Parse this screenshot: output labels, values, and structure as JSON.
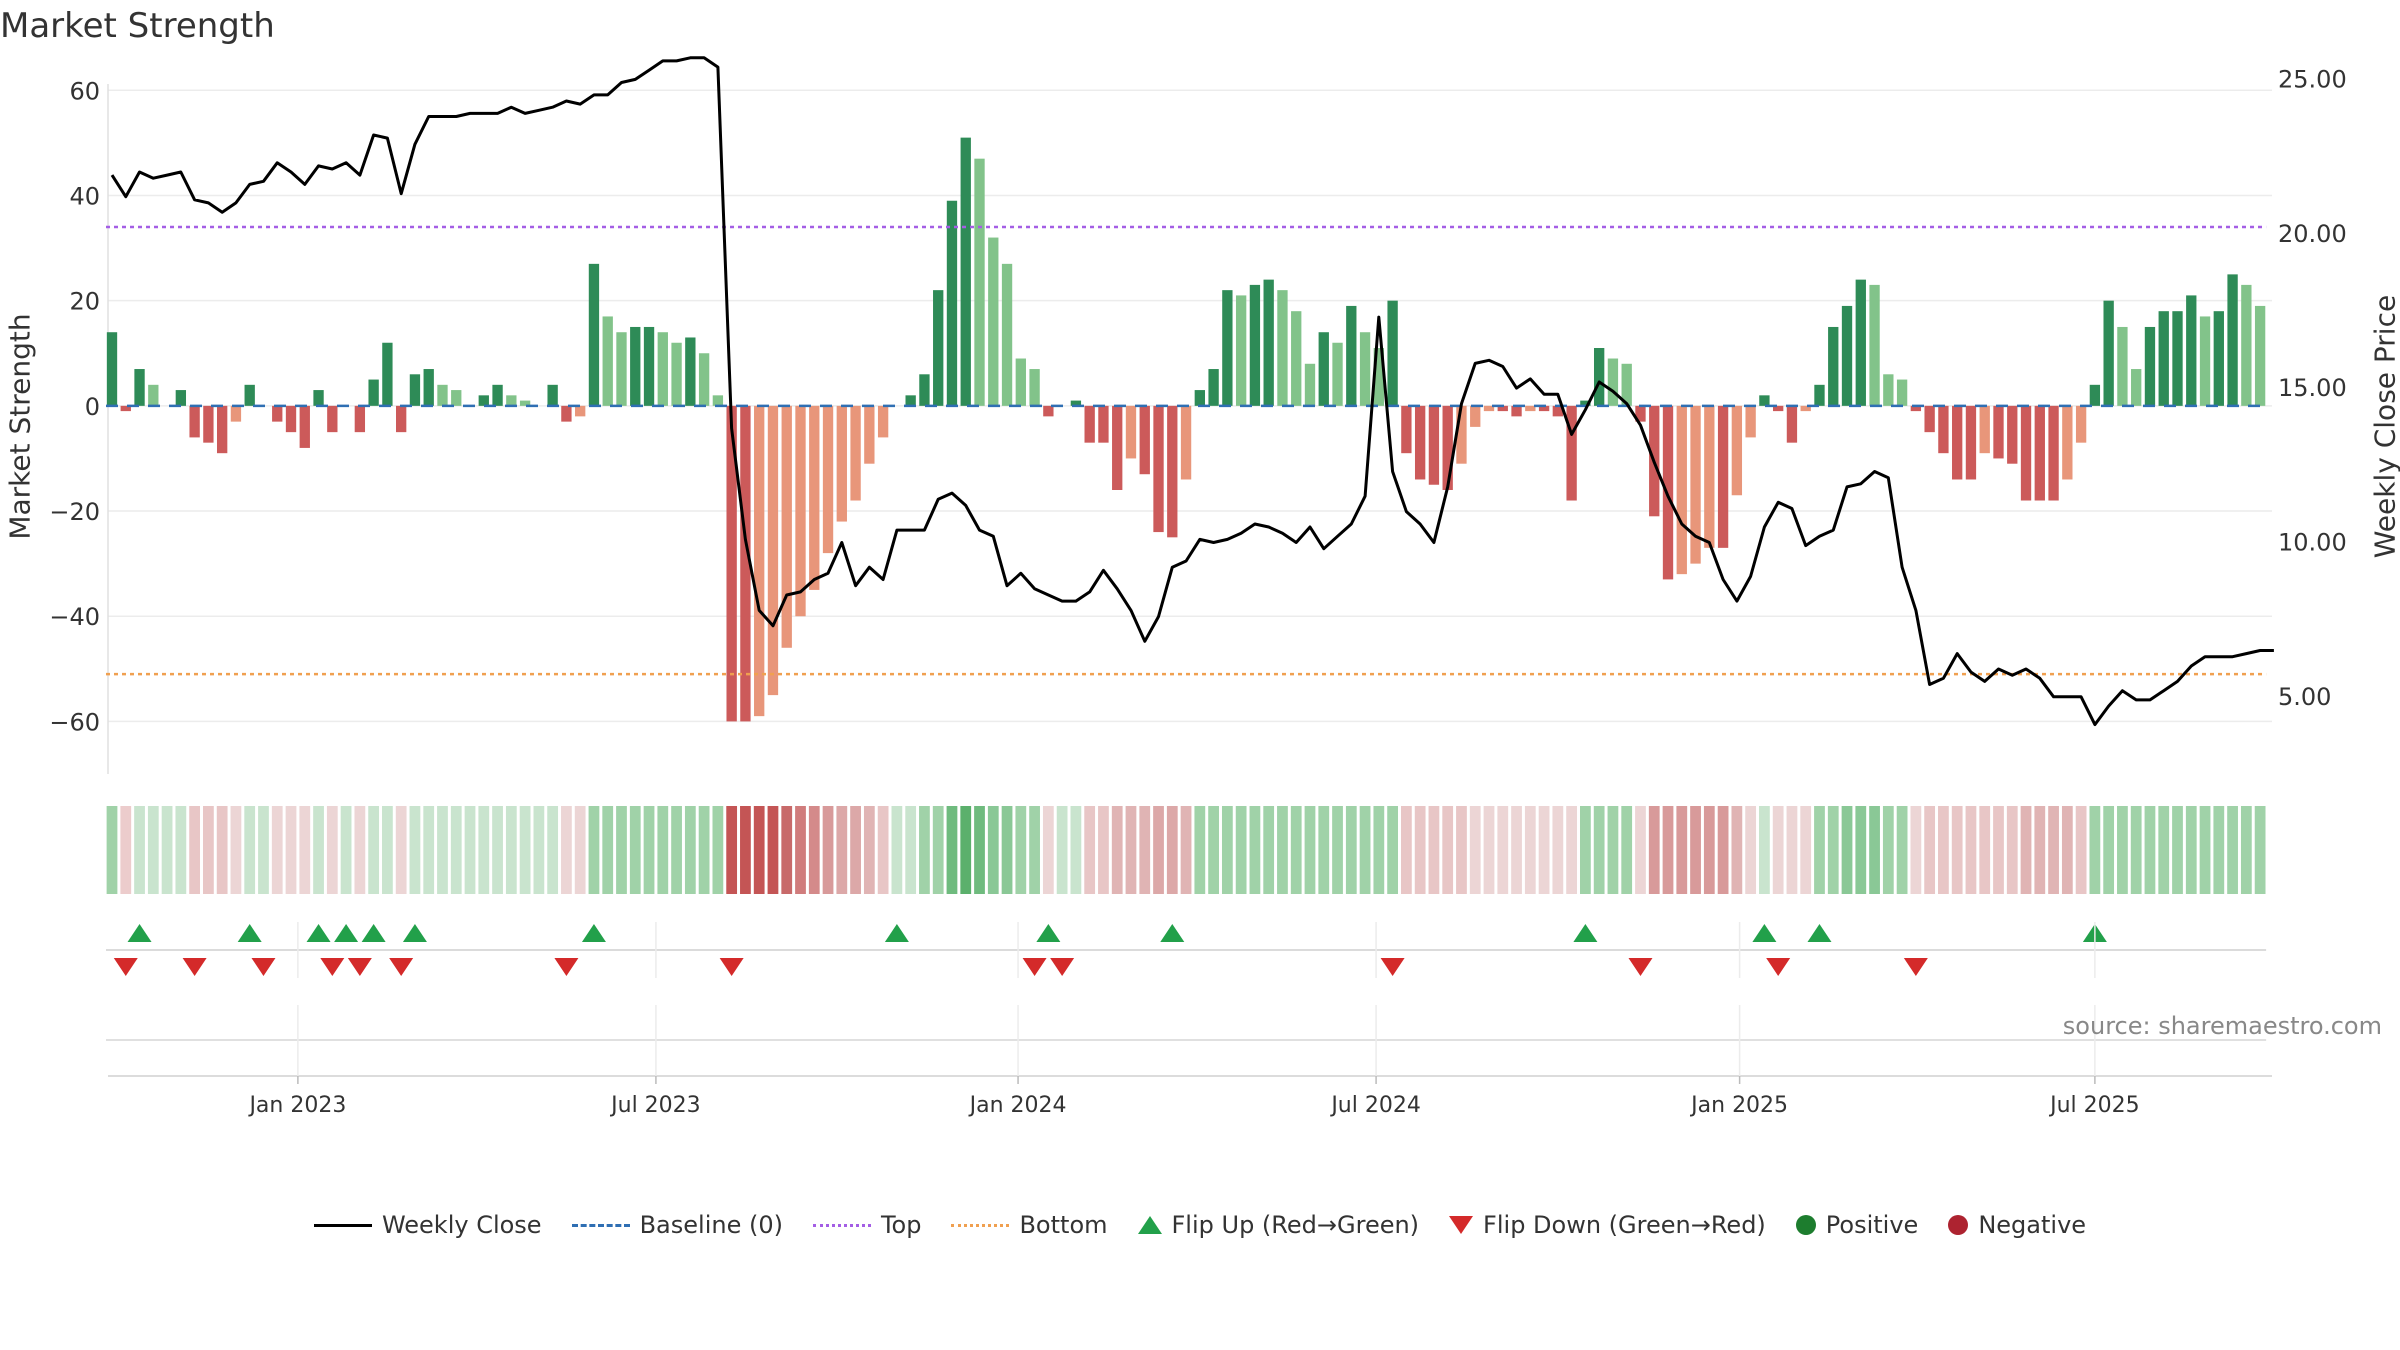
{
  "chart_data": {
    "type": "bar",
    "title": "Market Strength",
    "source": "source: sharemaestro.com",
    "ylabel_left": "Market Strength",
    "ylabel_right": "Weekly Close Price",
    "ylim_left": [
      -70,
      65
    ],
    "ylim_right": [
      2.5,
      25.5
    ],
    "yticks_left": [
      60,
      40,
      20,
      0,
      -20,
      -40,
      -60
    ],
    "ytick_labels_left": [
      "60",
      "40",
      "20",
      "0",
      "−20",
      "−40",
      "−60"
    ],
    "yticks_right": [
      25,
      20,
      15,
      10,
      5
    ],
    "ytick_labels_right": [
      "25.00",
      "20.00",
      "15.00",
      "10.00",
      "5.00"
    ],
    "reference_lines": {
      "baseline": 0,
      "top": 34,
      "bottom": -51
    },
    "xticks": [
      {
        "week": 13.5,
        "label": "Jan 2023"
      },
      {
        "week": 39.5,
        "label": "Jul 2023"
      },
      {
        "week": 65.8,
        "label": "Jan 2024"
      },
      {
        "week": 91.8,
        "label": "Jul 2024"
      },
      {
        "week": 118.2,
        "label": "Jan 2025"
      },
      {
        "week": 144,
        "label": "Jul 2025"
      }
    ],
    "strength": [
      14,
      -1,
      7,
      4,
      0,
      3,
      -6,
      -7,
      -9,
      -3,
      4,
      0,
      -3,
      -5,
      -8,
      3,
      -5,
      0,
      -5,
      5,
      12,
      -5,
      6,
      7,
      4,
      3,
      0,
      2,
      4,
      2,
      1,
      0,
      4,
      -3,
      -2,
      27,
      17,
      14,
      15,
      15,
      14,
      12,
      13,
      10,
      2,
      -60,
      -60,
      -59,
      -55,
      -46,
      -40,
      -35,
      -28,
      -22,
      -18,
      -11,
      -6,
      0,
      2,
      6,
      22,
      39,
      51,
      47,
      32,
      27,
      9,
      7,
      -2,
      0,
      1,
      -7,
      -7,
      -16,
      -10,
      -13,
      -24,
      -25,
      -14,
      3,
      7,
      22,
      21,
      23,
      24,
      22,
      18,
      8,
      14,
      12,
      19,
      14,
      11,
      20,
      -9,
      -14,
      -15,
      -16,
      -11,
      -4,
      -1,
      -1,
      -2,
      -1,
      -1,
      -2,
      -18,
      1,
      11,
      9,
      8,
      -3,
      -21,
      -33,
      -32,
      -30,
      -27,
      -27,
      -17,
      -6,
      2,
      -1,
      -7,
      -1,
      4,
      15,
      19,
      24,
      23,
      6,
      5,
      -1,
      -5,
      -9,
      -14,
      -14,
      -9,
      -10,
      -11,
      -18,
      -18,
      -18,
      -14,
      -7,
      4,
      20,
      15,
      7,
      15,
      18,
      18,
      21,
      17,
      18,
      25,
      23,
      19
    ],
    "weekly_close": [
      21.9,
      21.2,
      22.0,
      21.8,
      21.9,
      22.0,
      21.1,
      21.0,
      20.7,
      21.0,
      21.6,
      21.7,
      22.3,
      22.0,
      21.6,
      22.2,
      22.1,
      22.3,
      21.9,
      23.2,
      23.1,
      21.3,
      22.9,
      23.8,
      23.8,
      23.8,
      23.9,
      23.9,
      23.9,
      24.1,
      23.9,
      24.0,
      24.1,
      24.3,
      24.2,
      24.5,
      24.5,
      24.9,
      25.0,
      25.3,
      25.6,
      25.6,
      25.7,
      25.7,
      25.4,
      13.7,
      10.1,
      7.8,
      7.3,
      8.3,
      8.4,
      8.8,
      9.0,
      10.0,
      8.6,
      9.2,
      8.8,
      10.4,
      10.4,
      10.4,
      11.4,
      11.6,
      11.2,
      10.4,
      10.2,
      8.6,
      9.0,
      8.5,
      8.3,
      8.1,
      8.1,
      8.4,
      9.1,
      8.5,
      7.8,
      6.8,
      7.6,
      9.2,
      9.4,
      10.1,
      10.0,
      10.1,
      10.3,
      10.6,
      10.5,
      10.3,
      10.0,
      10.5,
      9.8,
      10.2,
      10.6,
      11.5,
      17.3,
      12.3,
      11.0,
      10.6,
      10.0,
      11.8,
      14.5,
      15.8,
      15.9,
      15.7,
      15.0,
      15.3,
      14.8,
      14.8,
      13.5,
      14.3,
      15.2,
      14.9,
      14.5,
      13.8,
      12.6,
      11.5,
      10.6,
      10.2,
      10.0,
      8.8,
      8.1,
      8.9,
      10.5,
      11.3,
      11.1,
      9.9,
      10.2,
      10.4,
      11.8,
      11.9,
      12.3,
      12.1,
      9.2,
      7.8,
      5.4,
      5.6,
      6.4,
      5.8,
      5.5,
      5.9,
      5.7,
      5.9,
      5.6,
      5.0,
      5.0,
      5.0,
      4.1,
      4.7,
      5.2,
      4.9,
      4.9,
      5.2,
      5.5,
      6.0,
      6.3,
      6.3,
      6.3,
      6.4,
      6.5,
      6.5
    ],
    "heat_strip_colors": [
      "#a0d2a8",
      "#eccccc",
      "#c9e4ce",
      "#c9e4ce",
      "#c9e4ce",
      "#c9e4ce",
      "#e8c6c6",
      "#e8c6c6",
      "#e8c6c6",
      "#ecd5d5",
      "#c9e4ce",
      "#c9e4ce",
      "#ecd5d5",
      "#ecd5d5",
      "#ecd5d5",
      "#c9e4ce",
      "#ecd5d5",
      "#c9e4ce",
      "#ecd5d5",
      "#c9e4ce",
      "#c9e4ce",
      "#ecd5d5",
      "#c9e4ce",
      "#c9e4ce",
      "#c9e4ce",
      "#c9e4ce",
      "#c9e4ce",
      "#c9e4ce",
      "#c9e4ce",
      "#c9e4ce",
      "#c9e4ce",
      "#c9e4ce",
      "#c9e4ce",
      "#ecd5d5",
      "#ecd5d5",
      "#a0d2a8",
      "#a0d2a8",
      "#a0d2a8",
      "#a0d2a8",
      "#a0d2a8",
      "#a0d2a8",
      "#a0d2a8",
      "#a0d2a8",
      "#a0d2a8",
      "#a0d2a8",
      "#c45555",
      "#c45555",
      "#c45555",
      "#c45555",
      "#c86a6a",
      "#d07c7c",
      "#d48a8a",
      "#d89a9a",
      "#dca8a8",
      "#dca8a8",
      "#e0b4b4",
      "#e8c6c6",
      "#c9e4ce",
      "#c9e4ce",
      "#a0d2a8",
      "#a0d2a8",
      "#6fbb7e",
      "#5bb06c",
      "#6fbb7e",
      "#8ac896",
      "#8ac896",
      "#a0d2a8",
      "#a0d2a8",
      "#ecd5d5",
      "#c9e4ce",
      "#c9e4ce",
      "#e8c6c6",
      "#e8c6c6",
      "#e0b4b4",
      "#e0b4b4",
      "#e0b4b4",
      "#dca8a8",
      "#dca8a8",
      "#e0b4b4",
      "#a0d2a8",
      "#a0d2a8",
      "#a0d2a8",
      "#a0d2a8",
      "#a0d2a8",
      "#a0d2a8",
      "#a0d2a8",
      "#a0d2a8",
      "#a0d2a8",
      "#a0d2a8",
      "#a0d2a8",
      "#a0d2a8",
      "#a0d2a8",
      "#a0d2a8",
      "#a0d2a8",
      "#e8c6c6",
      "#e8c6c6",
      "#e8c6c6",
      "#e8c6c6",
      "#e8c6c6",
      "#ecd5d5",
      "#ecd5d5",
      "#ecd5d5",
      "#ecd5d5",
      "#ecd5d5",
      "#ecd5d5",
      "#ecd5d5",
      "#ecd5d5",
      "#a0d2a8",
      "#a0d2a8",
      "#a0d2a8",
      "#a0d2a8",
      "#ecd5d5",
      "#d89a9a",
      "#d89a9a",
      "#d89a9a",
      "#d89a9a",
      "#d89a9a",
      "#d89a9a",
      "#e0b4b4",
      "#ecd5d5",
      "#c9e4ce",
      "#ecd5d5",
      "#ecd5d5",
      "#ecd5d5",
      "#a0d2a8",
      "#a0d2a8",
      "#8ac896",
      "#8ac896",
      "#8ac896",
      "#a0d2a8",
      "#a0d2a8",
      "#ecd5d5",
      "#e8c6c6",
      "#e8c6c6",
      "#e8c6c6",
      "#e8c6c6",
      "#e8c6c6",
      "#e8c6c6",
      "#e8c6c6",
      "#e0b4b4",
      "#e0b4b4",
      "#e0b4b4",
      "#e0b4b4",
      "#e8c6c6",
      "#a0d2a8",
      "#a0d2a8",
      "#a0d2a8",
      "#a0d2a8",
      "#a0d2a8",
      "#a0d2a8",
      "#a0d2a8",
      "#a0d2a8",
      "#a0d2a8",
      "#a0d2a8",
      "#a0d2a8",
      "#a0d2a8",
      "#a0d2a8"
    ],
    "flip_up_weeks": [
      2,
      10,
      15,
      17,
      19,
      22,
      35,
      57,
      68,
      77,
      107,
      120,
      124,
      144
    ],
    "flip_down_weeks": [
      1,
      6,
      11,
      16,
      18,
      21,
      33,
      45,
      67,
      69,
      93,
      111,
      121,
      131
    ],
    "colors": {
      "pos_dark": "#2e8b57",
      "pos_light": "#82c38a",
      "neg_dark": "#cc5a5a",
      "neg_light": "#e8967a",
      "close_line": "#000000",
      "baseline": "#2f6fb3",
      "top_line": "#a45ee5",
      "bottom_line": "#f0a050",
      "flip_up": "#22a04a",
      "flip_down": "#d42a2a",
      "positive": "#1d7d2e",
      "negative": "#ad2330"
    },
    "legend": [
      {
        "key": "close",
        "label": "Weekly Close"
      },
      {
        "key": "baseline",
        "label": "Baseline (0)"
      },
      {
        "key": "top",
        "label": "Top"
      },
      {
        "key": "bottom",
        "label": "Bottom"
      },
      {
        "key": "flip_up",
        "label": "Flip Up (Red→Green)"
      },
      {
        "key": "flip_down",
        "label": "Flip Down (Green→Red)"
      },
      {
        "key": "positive",
        "label": "Positive"
      },
      {
        "key": "negative",
        "label": "Negative"
      }
    ]
  }
}
